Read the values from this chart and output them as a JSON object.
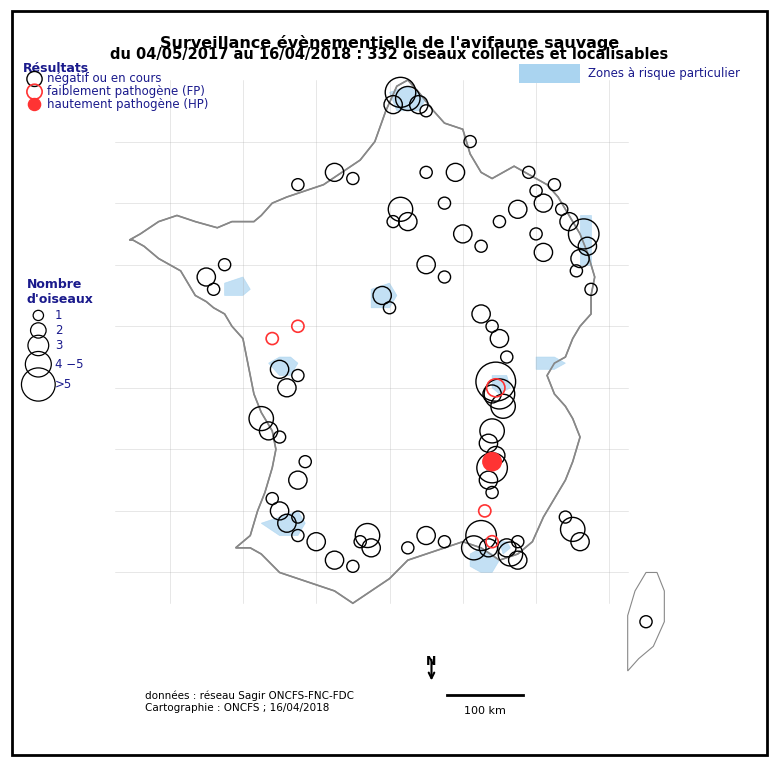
{
  "title_line1": "Surveillance évènementielle de l'avifaune sauvage",
  "title_line2": "du 04/05/2017 au 16/04/2018 : 332 oiseaux collectés et localisables",
  "results_label": "Résultats",
  "legend_negatif": "négatif ou en cours",
  "legend_fp": "faiblement pathogène (FP)",
  "legend_hp": "hautement pathogène (HP)",
  "legend_zone": "Zones à risque particulier",
  "legend_nombre": "Nombre\nd'oiseaux",
  "legend_sizes": [
    "1",
    "2",
    "3",
    "4 −5",
    ">5"
  ],
  "source_text": "données : réseau Sagir ONCFS-FNC-FDC\nCartographie : ONCFS ; 16/04/2018",
  "scale_text": "100 km",
  "north_text": "N",
  "bg_color": "#ffffff",
  "border_color": "#000000",
  "map_fill": "#ffffff",
  "map_border": "#888888",
  "zone_color": "#aad4f0",
  "circle_color_neg": "#000000",
  "circle_color_fp": "#ff4444",
  "circle_color_hp": "#ff2222",
  "title_color": "#000000",
  "text_color": "#1a1a8c",
  "figsize": [
    7.79,
    7.66
  ],
  "dpi": 100,
  "points_neg": [
    [
      0.52,
      0.87,
      3
    ],
    [
      0.53,
      0.88,
      2
    ],
    [
      0.56,
      0.88,
      2
    ],
    [
      0.58,
      0.87,
      1
    ],
    [
      0.6,
      0.86,
      2
    ],
    [
      0.61,
      0.85,
      2
    ],
    [
      0.59,
      0.85,
      1
    ],
    [
      0.57,
      0.84,
      1
    ],
    [
      0.55,
      0.86,
      1
    ],
    [
      0.54,
      0.85,
      1
    ],
    [
      0.44,
      0.77,
      2
    ],
    [
      0.45,
      0.76,
      1
    ],
    [
      0.43,
      0.75,
      1
    ],
    [
      0.34,
      0.69,
      2
    ],
    [
      0.33,
      0.7,
      1
    ],
    [
      0.35,
      0.68,
      1
    ],
    [
      0.3,
      0.64,
      4
    ],
    [
      0.31,
      0.63,
      3
    ],
    [
      0.32,
      0.64,
      2
    ],
    [
      0.29,
      0.65,
      1
    ],
    [
      0.28,
      0.62,
      2
    ],
    [
      0.27,
      0.61,
      1
    ],
    [
      0.26,
      0.63,
      1
    ],
    [
      0.33,
      0.6,
      2
    ],
    [
      0.34,
      0.61,
      1
    ],
    [
      0.35,
      0.59,
      1
    ],
    [
      0.36,
      0.58,
      1
    ],
    [
      0.37,
      0.57,
      2
    ],
    [
      0.38,
      0.55,
      1
    ],
    [
      0.4,
      0.54,
      1
    ],
    [
      0.39,
      0.5,
      2
    ],
    [
      0.38,
      0.49,
      1
    ],
    [
      0.4,
      0.46,
      3
    ],
    [
      0.41,
      0.47,
      2
    ],
    [
      0.42,
      0.46,
      1
    ],
    [
      0.41,
      0.43,
      4
    ],
    [
      0.4,
      0.42,
      2
    ],
    [
      0.42,
      0.44,
      1
    ],
    [
      0.43,
      0.39,
      2
    ],
    [
      0.44,
      0.4,
      1
    ],
    [
      0.46,
      0.36,
      2
    ],
    [
      0.47,
      0.35,
      1
    ],
    [
      0.48,
      0.33,
      3
    ],
    [
      0.49,
      0.34,
      1
    ],
    [
      0.5,
      0.28,
      2
    ],
    [
      0.51,
      0.27,
      1
    ],
    [
      0.55,
      0.28,
      1
    ],
    [
      0.56,
      0.27,
      1
    ],
    [
      0.57,
      0.26,
      2
    ],
    [
      0.58,
      0.27,
      1
    ],
    [
      0.62,
      0.3,
      1
    ],
    [
      0.63,
      0.29,
      1
    ],
    [
      0.65,
      0.32,
      2
    ],
    [
      0.66,
      0.31,
      1
    ],
    [
      0.68,
      0.34,
      1
    ],
    [
      0.69,
      0.35,
      2
    ],
    [
      0.7,
      0.38,
      3
    ],
    [
      0.71,
      0.37,
      1
    ],
    [
      0.72,
      0.42,
      2
    ],
    [
      0.73,
      0.41,
      1
    ],
    [
      0.74,
      0.45,
      4
    ],
    [
      0.75,
      0.44,
      2
    ],
    [
      0.73,
      0.46,
      1
    ],
    [
      0.76,
      0.48,
      3
    ],
    [
      0.77,
      0.47,
      2
    ],
    [
      0.78,
      0.52,
      2
    ],
    [
      0.79,
      0.51,
      1
    ],
    [
      0.75,
      0.55,
      5
    ],
    [
      0.76,
      0.54,
      3
    ],
    [
      0.77,
      0.58,
      2
    ],
    [
      0.76,
      0.59,
      1
    ],
    [
      0.74,
      0.62,
      4
    ],
    [
      0.73,
      0.63,
      2
    ],
    [
      0.75,
      0.61,
      1
    ],
    [
      0.72,
      0.66,
      3
    ],
    [
      0.71,
      0.65,
      1
    ],
    [
      0.7,
      0.7,
      2
    ],
    [
      0.69,
      0.69,
      1
    ],
    [
      0.67,
      0.73,
      1
    ],
    [
      0.68,
      0.72,
      2
    ],
    [
      0.65,
      0.75,
      3
    ],
    [
      0.64,
      0.74,
      1
    ],
    [
      0.63,
      0.78,
      2
    ],
    [
      0.62,
      0.77,
      1
    ],
    [
      0.6,
      0.79,
      1
    ],
    [
      0.59,
      0.78,
      2
    ],
    [
      0.58,
      0.76,
      1
    ],
    [
      0.57,
      0.75,
      2
    ],
    [
      0.55,
      0.72,
      1
    ],
    [
      0.54,
      0.73,
      2
    ],
    [
      0.52,
      0.71,
      1
    ],
    [
      0.51,
      0.72,
      1
    ],
    [
      0.5,
      0.68,
      2
    ],
    [
      0.49,
      0.67,
      1
    ],
    [
      0.48,
      0.65,
      2
    ],
    [
      0.47,
      0.64,
      1
    ],
    [
      0.46,
      0.62,
      1
    ],
    [
      0.45,
      0.61,
      2
    ],
    [
      0.44,
      0.58,
      1
    ],
    [
      0.43,
      0.57,
      2
    ],
    [
      0.42,
      0.55,
      1
    ],
    [
      0.41,
      0.54,
      2
    ],
    [
      0.53,
      0.8,
      1
    ],
    [
      0.54,
      0.79,
      1
    ]
  ],
  "points_fp": [
    [
      0.3,
      0.63,
      1
    ],
    [
      0.35,
      0.6,
      1
    ],
    [
      0.38,
      0.56,
      1
    ],
    [
      0.48,
      0.64,
      1
    ],
    [
      0.66,
      0.5,
      1
    ]
  ],
  "points_hp": [
    [
      0.75,
      0.56,
      1
    ]
  ]
}
